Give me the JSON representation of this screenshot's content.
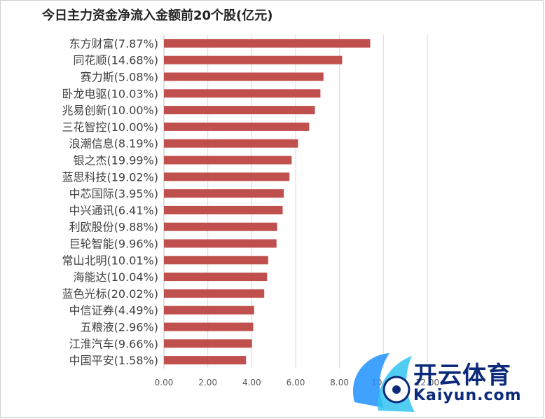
{
  "chart_data": {
    "type": "bar",
    "orientation": "horizontal",
    "title": "今日主力资金净流入金额前20个股(亿元)",
    "categories": [
      "东方财富(7.87%)",
      "同花顺(14.68%)",
      "赛力斯(5.08%)",
      "卧龙电驱(10.03%)",
      "兆易创新(10.00%)",
      "三花智控(10.00%)",
      "浪潮信息(8.19%)",
      "银之杰(19.99%)",
      "蓝思科技(19.02%)",
      "中芯国际(3.95%)",
      "中兴通讯(6.41%)",
      "利欧股份(9.88%)",
      "巨轮智能(9.96%)",
      "常山北明(10.01%)",
      "海能达(10.04%)",
      "蓝色光标(20.02%)",
      "中信证券(4.49%)",
      "五粮液(2.96%)",
      "江淮汽车(9.66%)",
      "中国平安(1.58%)"
    ],
    "values": [
      9.4,
      8.12,
      7.27,
      7.13,
      6.88,
      6.62,
      6.11,
      5.82,
      5.72,
      5.46,
      5.41,
      5.16,
      5.13,
      4.75,
      4.7,
      4.57,
      4.11,
      4.07,
      4.01,
      3.74
    ],
    "xlim": [
      0,
      12
    ],
    "xticks": [
      "0.00",
      "2.00",
      "4.00",
      "6.00",
      "8.00",
      "10.00",
      "12.00"
    ],
    "grid": true,
    "bar_color": "#c0504d",
    "grid_color": "#d9d9d9"
  },
  "watermark": {
    "brand_cn": "开云体育",
    "brand_en": "Kaiyun.com",
    "colors": {
      "primary": "#0b2a7a",
      "accent": "#1e90ff"
    }
  }
}
